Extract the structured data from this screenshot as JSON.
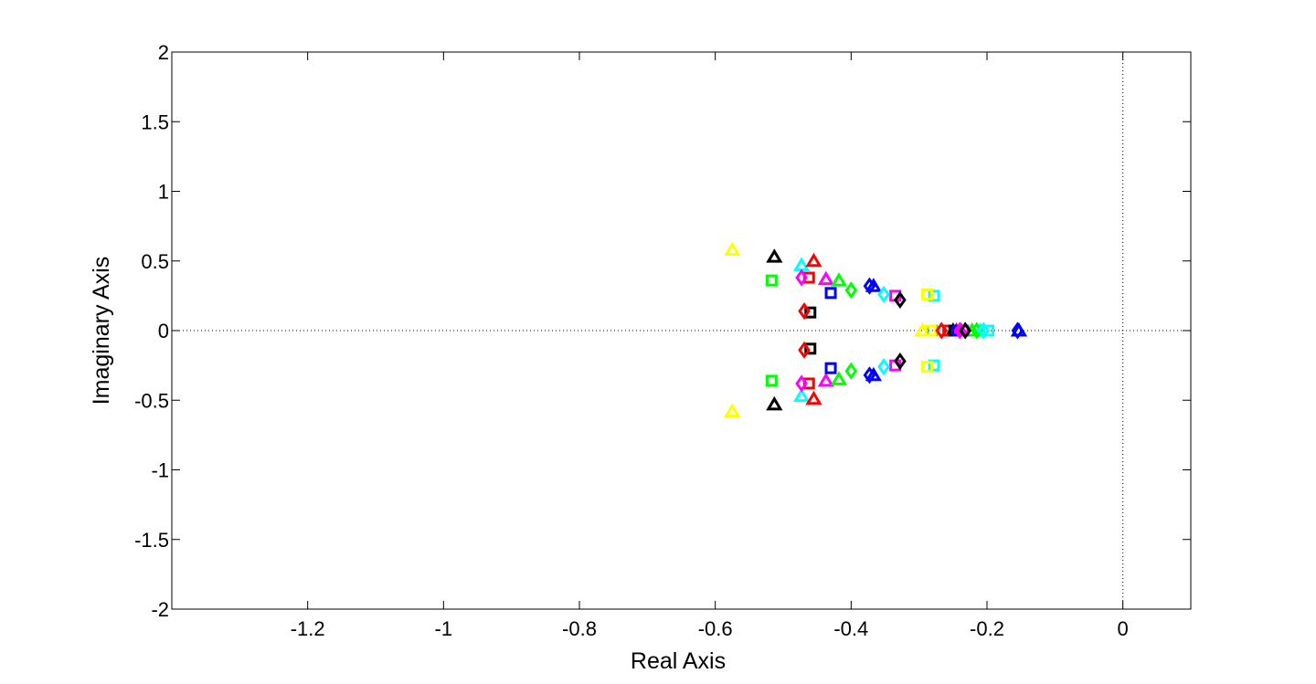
{
  "chart_data": {
    "type": "scatter",
    "title": "",
    "xlabel": "Real Axis",
    "ylabel": "Imaginary Axis",
    "xlim": [
      -1.4,
      0.1
    ],
    "ylim": [
      -2,
      2
    ],
    "xticks": [
      -1.2,
      -1,
      -0.8,
      -0.6,
      -0.4,
      -0.2,
      0
    ],
    "xtick_labels": [
      "-1.2",
      "-1",
      "-0.8",
      "-0.6",
      "-0.4",
      "-0.2",
      "0"
    ],
    "yticks": [
      2,
      1.5,
      1,
      0.5,
      0,
      -0.5,
      -1,
      -1.5,
      -2
    ],
    "ytick_labels": [
      "2",
      "1.5",
      "1",
      "0.5",
      "0",
      "-0.5",
      "-1",
      "-1.5",
      "-2"
    ],
    "reference_lines": [
      {
        "orientation": "horizontal",
        "value": 0,
        "style": "dotted"
      },
      {
        "orientation": "vertical",
        "value": 0,
        "style": "dotted"
      }
    ],
    "grid": false,
    "legend": "none",
    "series": [
      {
        "color": "#ffff00",
        "marker": "triangle",
        "points": [
          [
            -0.575,
            0.58
          ],
          [
            -0.575,
            -0.58
          ],
          [
            -0.295,
            0.0
          ]
        ]
      },
      {
        "color": "#000000",
        "marker": "triangle",
        "points": [
          [
            -0.513,
            0.53
          ],
          [
            -0.513,
            -0.53
          ],
          [
            -0.25,
            0.0
          ]
        ]
      },
      {
        "color": "#00ffff",
        "marker": "triangle",
        "points": [
          [
            -0.473,
            0.47
          ],
          [
            -0.473,
            -0.47
          ],
          [
            -0.21,
            0.0
          ]
        ]
      },
      {
        "color": "#ff0000",
        "marker": "triangle",
        "points": [
          [
            -0.455,
            0.5
          ],
          [
            -0.455,
            -0.49
          ],
          [
            -0.245,
            0.0
          ]
        ]
      },
      {
        "color": "#ff00ff",
        "marker": "triangle",
        "points": [
          [
            -0.437,
            0.37
          ],
          [
            -0.437,
            -0.36
          ],
          [
            -0.238,
            0.0
          ]
        ]
      },
      {
        "color": "#00ff00",
        "marker": "triangle",
        "points": [
          [
            -0.418,
            0.36
          ],
          [
            -0.418,
            -0.35
          ],
          [
            -0.222,
            0.0
          ]
        ]
      },
      {
        "color": "#0000ff",
        "marker": "triangle",
        "points": [
          [
            -0.367,
            0.32
          ],
          [
            -0.367,
            -0.32
          ],
          [
            -0.153,
            0.0
          ]
        ]
      },
      {
        "color": "#00ff00",
        "marker": "square",
        "points": [
          [
            -0.517,
            0.36
          ],
          [
            -0.517,
            -0.36
          ],
          [
            -0.281,
            0.0
          ]
        ]
      },
      {
        "color": "#ff0000",
        "marker": "square",
        "points": [
          [
            -0.462,
            0.38
          ],
          [
            -0.462,
            -0.38
          ],
          [
            -0.257,
            0.0
          ]
        ]
      },
      {
        "color": "#000000",
        "marker": "square",
        "points": [
          [
            -0.46,
            0.13
          ],
          [
            -0.46,
            -0.13
          ],
          [
            -0.248,
            0.0
          ]
        ]
      },
      {
        "color": "#0000ff",
        "marker": "square",
        "points": [
          [
            -0.43,
            0.27
          ],
          [
            -0.43,
            -0.27
          ],
          [
            -0.243,
            0.0
          ]
        ]
      },
      {
        "color": "#ff00ff",
        "marker": "square",
        "points": [
          [
            -0.335,
            0.25
          ],
          [
            -0.335,
            -0.25
          ],
          [
            -0.235,
            0.0
          ]
        ]
      },
      {
        "color": "#00ffff",
        "marker": "square",
        "points": [
          [
            -0.278,
            0.25
          ],
          [
            -0.278,
            -0.25
          ],
          [
            -0.198,
            0.0
          ]
        ]
      },
      {
        "color": "#ffff00",
        "marker": "square",
        "points": [
          [
            -0.288,
            0.26
          ],
          [
            -0.288,
            -0.26
          ],
          [
            -0.283,
            0.0
          ]
        ]
      },
      {
        "color": "#ff00ff",
        "marker": "diamond",
        "points": [
          [
            -0.473,
            0.38
          ],
          [
            -0.473,
            -0.38
          ],
          [
            -0.24,
            0.0
          ]
        ]
      },
      {
        "color": "#ff0000",
        "marker": "diamond",
        "points": [
          [
            -0.469,
            0.14
          ],
          [
            -0.469,
            -0.14
          ],
          [
            -0.267,
            0.0
          ]
        ]
      },
      {
        "color": "#00ff00",
        "marker": "diamond",
        "points": [
          [
            -0.4,
            0.29
          ],
          [
            -0.4,
            -0.29
          ],
          [
            -0.215,
            0.0
          ]
        ]
      },
      {
        "color": "#0000ff",
        "marker": "diamond",
        "points": [
          [
            -0.373,
            0.32
          ],
          [
            -0.373,
            -0.32
          ],
          [
            -0.155,
            0.0
          ]
        ]
      },
      {
        "color": "#00ffff",
        "marker": "diamond",
        "points": [
          [
            -0.352,
            0.26
          ],
          [
            -0.352,
            -0.26
          ],
          [
            -0.205,
            0.0
          ]
        ]
      },
      {
        "color": "#000000",
        "marker": "diamond",
        "points": [
          [
            -0.328,
            0.22
          ],
          [
            -0.328,
            -0.22
          ],
          [
            -0.232,
            0.0
          ]
        ]
      }
    ]
  }
}
